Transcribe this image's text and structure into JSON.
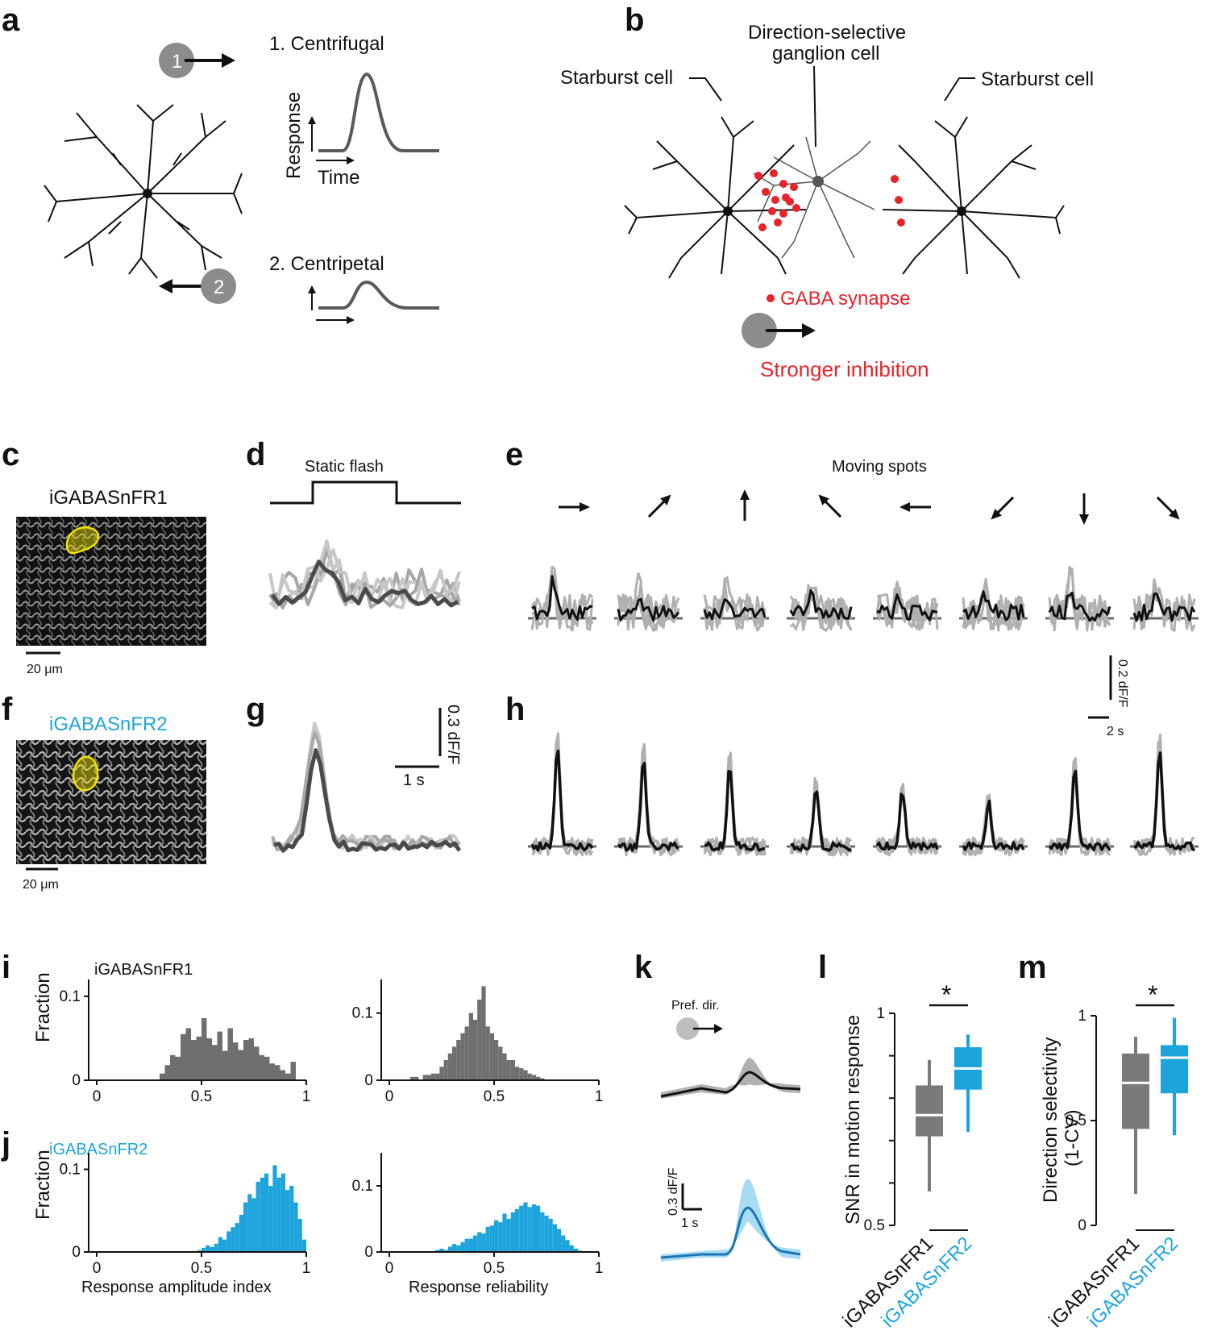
{
  "colors": {
    "black": "#111111",
    "gray": "#7a7a7a",
    "lightgray": "#bdbdbd",
    "blue": "#1ea4dd",
    "red": "#e8232a",
    "highlight": "#f2e400"
  },
  "panels": {
    "a": {
      "letter": "a",
      "step1": "1",
      "step2": "2",
      "centrifugal": "1. Centrifugal",
      "centripetal": "2. Centripetal",
      "ylabel": "Response",
      "xlabel": "Time"
    },
    "b": {
      "letter": "b",
      "dsgc": "Direction-selective ganglion cell",
      "dsgc_line1": "Direction-selective",
      "dsgc_line2": "ganglion cell",
      "starburst_left": "Starburst cell",
      "starburst_right": "Starburst cell",
      "synapse": "GABA synapse",
      "inhibition": "Stronger inhibition"
    },
    "c": {
      "letter": "c",
      "sensor": "iGABASnFR1",
      "scale": "20 μm"
    },
    "d": {
      "letter": "d",
      "title": "Static flash"
    },
    "e": {
      "letter": "e",
      "title": "Moving spots",
      "scale_y": "0.2 dF/F",
      "scale_x": "2 s",
      "directions": [
        "→",
        "↗",
        "↑",
        "↖",
        "←",
        "↙",
        "↓",
        "↘"
      ]
    },
    "f": {
      "letter": "f",
      "sensor": "iGABASnFR2",
      "scale": "20 μm"
    },
    "g": {
      "letter": "g",
      "scale_y": "0.3 dF/F",
      "scale_x": "1 s"
    },
    "h": {
      "letter": "h"
    },
    "i": {
      "letter": "i",
      "sensor": "iGABASnFR1",
      "ylabel": "Fraction"
    },
    "j": {
      "letter": "j",
      "sensor": "iGABASnFR2",
      "ylabel": "Fraction",
      "xlabel_left": "Response amplitude index",
      "xlabel_right": "Response reliability"
    },
    "k": {
      "letter": "k",
      "pref": "Pref. dir.",
      "scale_y": "0.3 dF/F",
      "scale_x": "1 s"
    },
    "l": {
      "letter": "l",
      "ylabel": "SNR in motion response",
      "sig": "*",
      "groups": [
        "iGABASnFR1",
        "iGABASnFR2"
      ]
    },
    "m": {
      "letter": "m",
      "ylabel_line1": "Direction selectivity",
      "ylabel_line2": "(1-CV)",
      "sig": "*",
      "groups": [
        "iGABASnFR1",
        "iGABASnFR2"
      ]
    }
  },
  "chart_data": [
    {
      "type": "bar",
      "panel": "i-left",
      "xlim": [
        0,
        1
      ],
      "ylim": [
        0,
        0.12
      ],
      "xticks": [
        "0",
        "0.5",
        "1"
      ],
      "yticks": [
        "0",
        "0.1"
      ],
      "bin_width": 0.025,
      "bins": [
        0.3,
        0.325,
        0.35,
        0.375,
        0.4,
        0.425,
        0.45,
        0.475,
        0.5,
        0.525,
        0.55,
        0.575,
        0.6,
        0.625,
        0.65,
        0.675,
        0.7,
        0.725,
        0.75,
        0.775,
        0.8,
        0.825,
        0.85,
        0.875,
        0.9,
        0.925
      ],
      "values": [
        0.008,
        0.018,
        0.03,
        0.028,
        0.055,
        0.062,
        0.048,
        0.052,
        0.074,
        0.05,
        0.042,
        0.058,
        0.035,
        0.062,
        0.045,
        0.036,
        0.048,
        0.05,
        0.04,
        0.03,
        0.028,
        0.02,
        0.018,
        0.012,
        0.008,
        0.022
      ]
    },
    {
      "type": "bar",
      "panel": "i-right",
      "xlim": [
        0,
        1
      ],
      "ylim": [
        0,
        0.15
      ],
      "xticks": [
        "0",
        "0.5",
        "1"
      ],
      "yticks": [
        "0",
        "0.1"
      ],
      "bin_width": 0.02,
      "bins": [
        0.1,
        0.12,
        0.14,
        0.16,
        0.18,
        0.2,
        0.22,
        0.24,
        0.26,
        0.28,
        0.3,
        0.32,
        0.34,
        0.36,
        0.38,
        0.4,
        0.42,
        0.44,
        0.46,
        0.48,
        0.5,
        0.52,
        0.54,
        0.56,
        0.58,
        0.6,
        0.62,
        0.64,
        0.66,
        0.68,
        0.7,
        0.72
      ],
      "values": [
        0.005,
        0.005,
        0.0,
        0.008,
        0.008,
        0.01,
        0.01,
        0.02,
        0.03,
        0.04,
        0.05,
        0.06,
        0.07,
        0.08,
        0.1,
        0.09,
        0.12,
        0.14,
        0.08,
        0.07,
        0.06,
        0.05,
        0.04,
        0.03,
        0.03,
        0.02,
        0.018,
        0.015,
        0.01,
        0.008,
        0.005,
        0.003
      ]
    },
    {
      "type": "bar",
      "panel": "j-left",
      "xlim": [
        0,
        1
      ],
      "ylim": [
        0,
        0.12
      ],
      "xticks": [
        "0",
        "0.5",
        "1"
      ],
      "yticks": [
        "0",
        "0.1"
      ],
      "bin_width": 0.02,
      "bins": [
        0.48,
        0.5,
        0.52,
        0.54,
        0.56,
        0.58,
        0.6,
        0.62,
        0.64,
        0.66,
        0.68,
        0.7,
        0.72,
        0.74,
        0.76,
        0.78,
        0.8,
        0.82,
        0.84,
        0.86,
        0.88,
        0.9,
        0.92,
        0.94,
        0.96,
        0.98
      ],
      "values": [
        0.002,
        0.005,
        0.008,
        0.006,
        0.01,
        0.018,
        0.015,
        0.025,
        0.03,
        0.035,
        0.045,
        0.06,
        0.07,
        0.065,
        0.085,
        0.09,
        0.095,
        0.08,
        0.105,
        0.09,
        0.095,
        0.075,
        0.08,
        0.06,
        0.04,
        0.015
      ]
    },
    {
      "type": "bar",
      "panel": "j-right",
      "xlim": [
        0,
        1
      ],
      "ylim": [
        0,
        0.15
      ],
      "xticks": [
        "0",
        "0.5",
        "1"
      ],
      "yticks": [
        "0",
        "0.1"
      ],
      "bin_width": 0.02,
      "bins": [
        0.22,
        0.24,
        0.26,
        0.28,
        0.3,
        0.32,
        0.34,
        0.36,
        0.38,
        0.4,
        0.42,
        0.44,
        0.46,
        0.48,
        0.5,
        0.52,
        0.54,
        0.56,
        0.58,
        0.6,
        0.62,
        0.64,
        0.66,
        0.68,
        0.7,
        0.72,
        0.74,
        0.76,
        0.78,
        0.8,
        0.82,
        0.84,
        0.86,
        0.88,
        0.9
      ],
      "values": [
        0.003,
        0.005,
        0.003,
        0.008,
        0.012,
        0.01,
        0.015,
        0.02,
        0.02,
        0.025,
        0.03,
        0.028,
        0.038,
        0.04,
        0.048,
        0.045,
        0.058,
        0.05,
        0.06,
        0.065,
        0.07,
        0.075,
        0.068,
        0.072,
        0.07,
        0.06,
        0.055,
        0.05,
        0.042,
        0.035,
        0.025,
        0.018,
        0.01,
        0.005,
        0.002
      ]
    },
    {
      "type": "box",
      "panel": "l",
      "ylim": [
        0.5,
        1
      ],
      "yticks": [
        "0.5",
        "1"
      ],
      "groups": [
        "iGABASnFR1",
        "iGABASnFR2"
      ],
      "boxes": [
        {
          "whislo": 0.58,
          "q1": 0.71,
          "median": 0.76,
          "q3": 0.83,
          "whishi": 0.89
        },
        {
          "whislo": 0.72,
          "q1": 0.82,
          "median": 0.87,
          "q3": 0.92,
          "whishi": 0.95
        }
      ]
    },
    {
      "type": "box",
      "panel": "m",
      "ylim": [
        0,
        1
      ],
      "yticks": [
        "0",
        "0.5",
        "1"
      ],
      "groups": [
        "iGABASnFR1",
        "iGABASnFR2"
      ],
      "boxes": [
        {
          "whislo": 0.15,
          "q1": 0.46,
          "median": 0.68,
          "q3": 0.82,
          "whishi": 0.9
        },
        {
          "whislo": 0.43,
          "q1": 0.63,
          "median": 0.8,
          "q3": 0.86,
          "whishi": 0.99
        }
      ]
    }
  ]
}
